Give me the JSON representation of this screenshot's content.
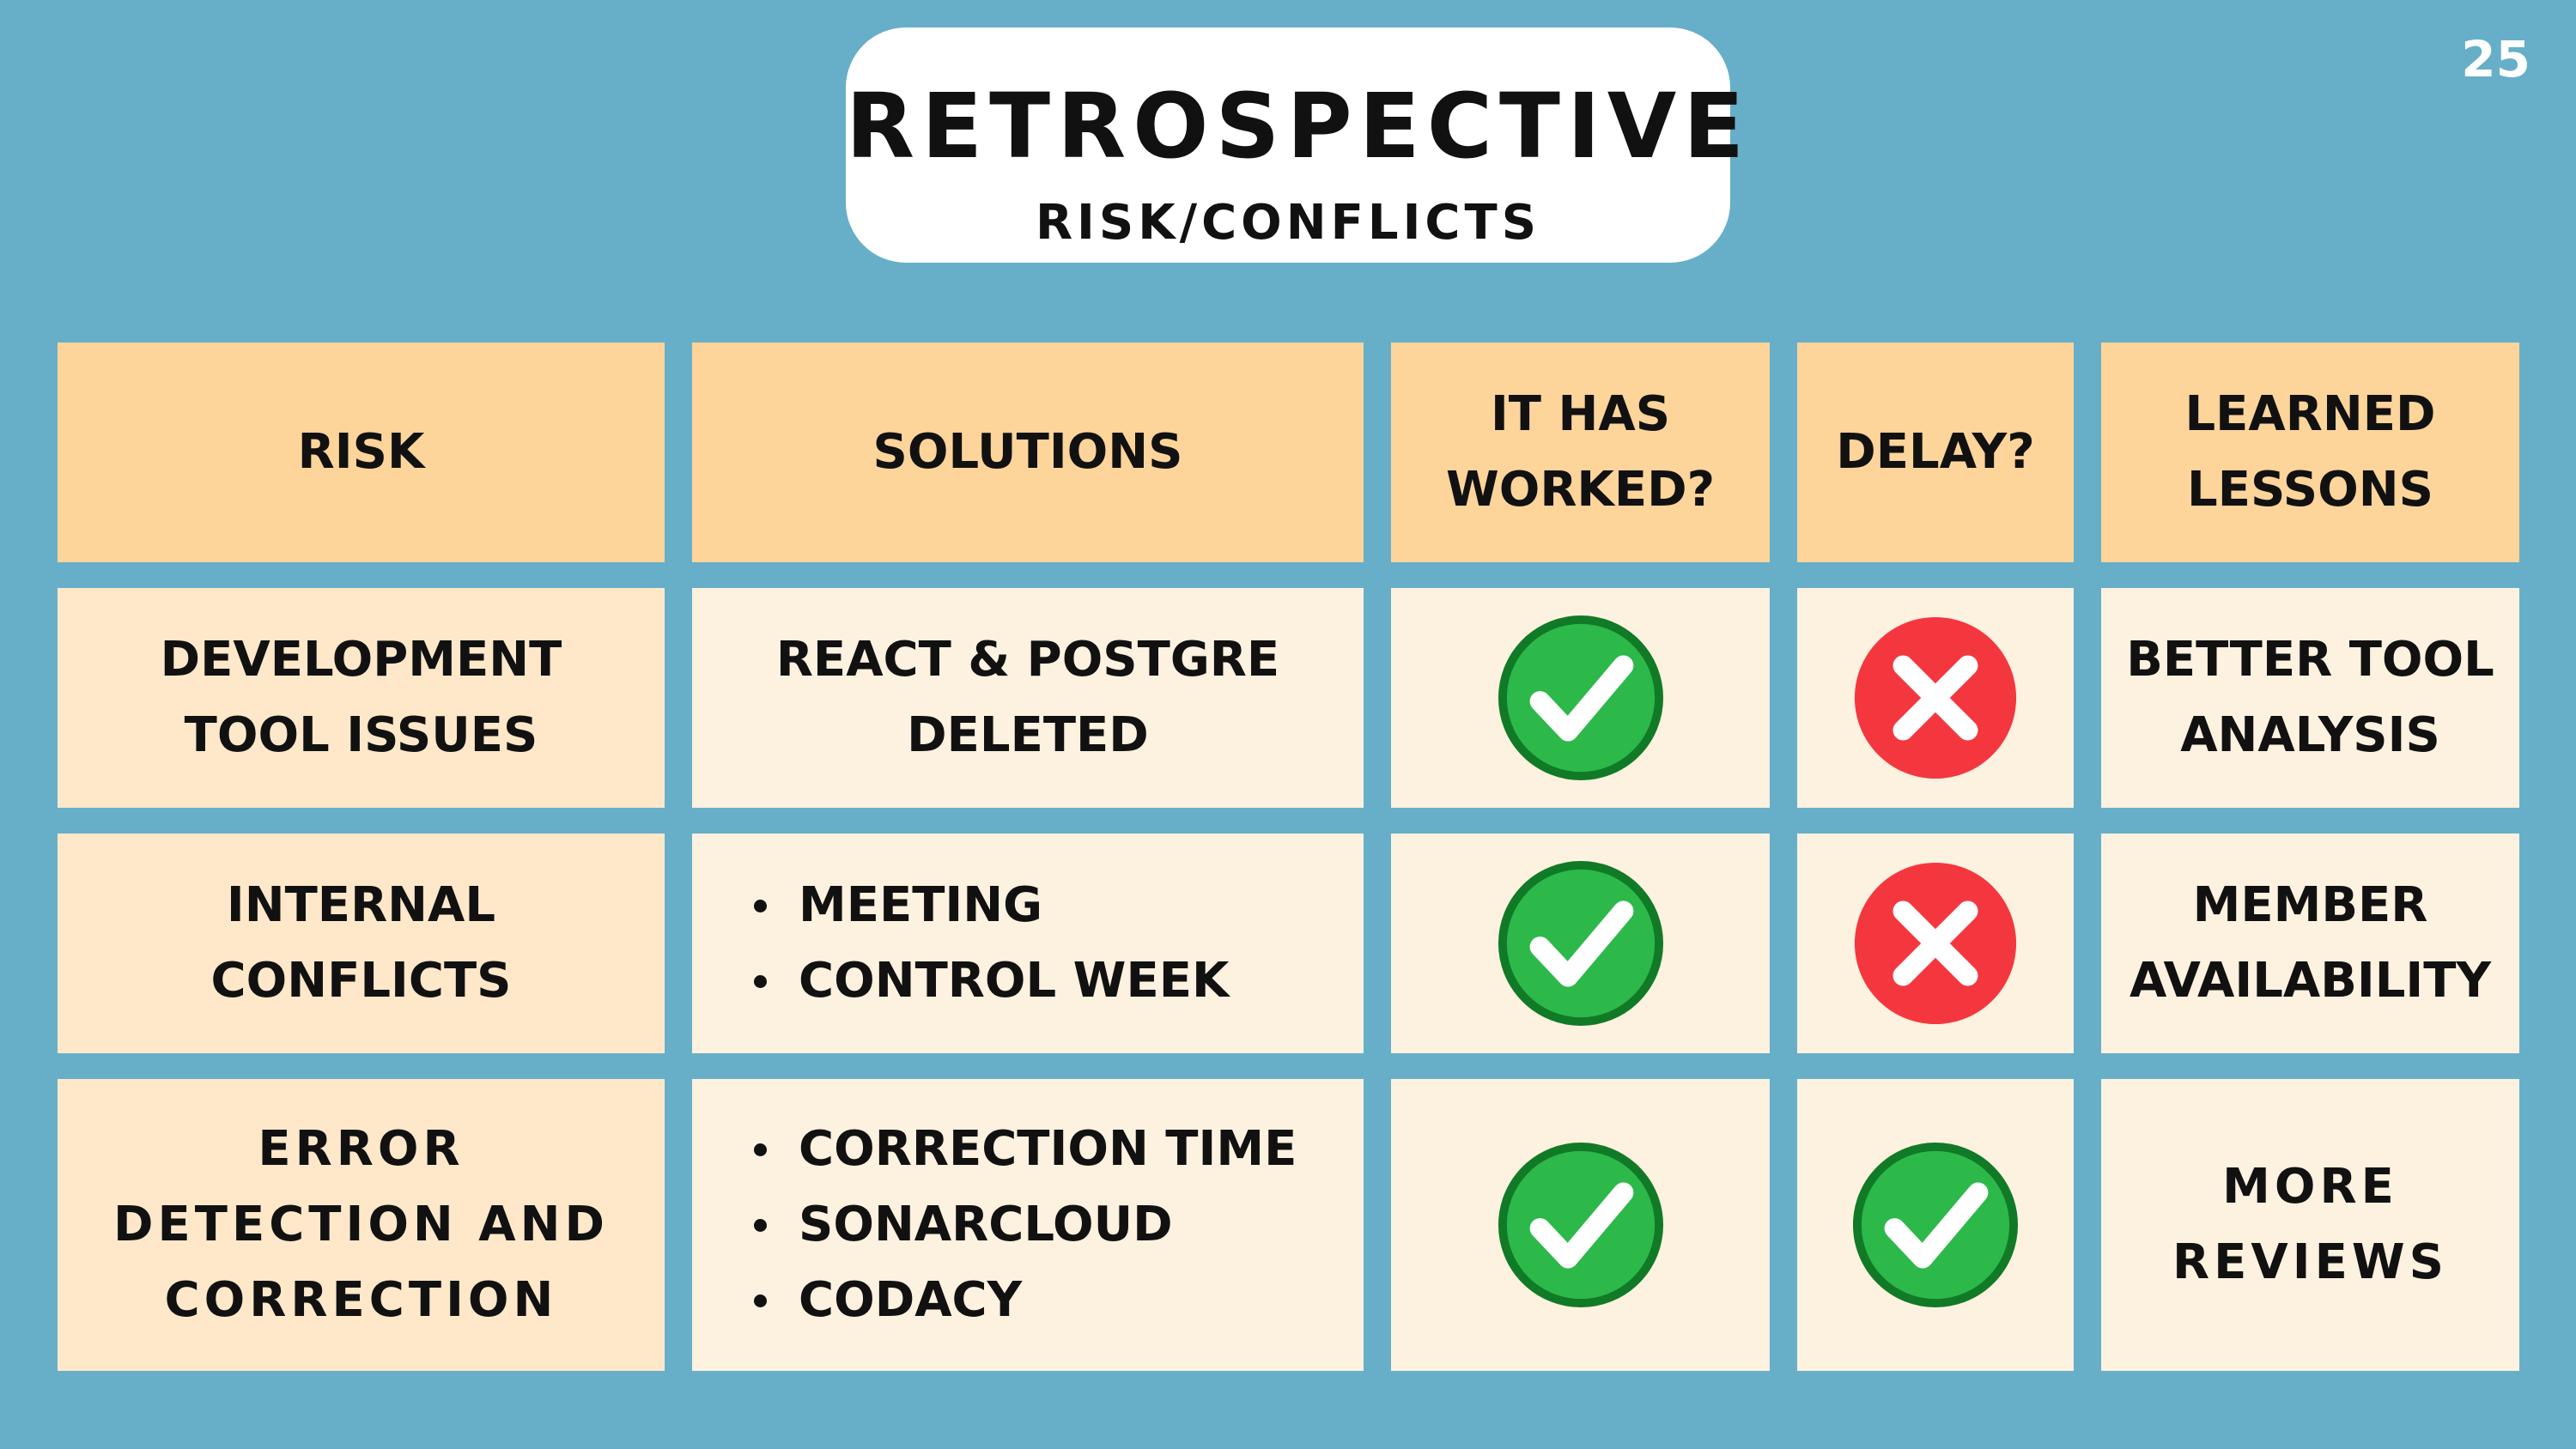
{
  "header": {
    "title": "RETROSPECTIVE",
    "subtitle": "RISK/CONFLICTS"
  },
  "page_number": "25",
  "table": {
    "columns": {
      "risk": "RISK",
      "solutions": "SOLUTIONS",
      "worked": [
        "IT HAS",
        "WORKED?"
      ],
      "delay": "DELAY?",
      "lessons": [
        "LEARNED",
        "LESSONS"
      ]
    },
    "rows": [
      {
        "risk": [
          "DEVELOPMENT",
          "TOOL ISSUES"
        ],
        "solution": [
          "REACT & POSTGRE",
          "DELETED"
        ],
        "worked": true,
        "delay": false,
        "lessons": [
          "BETTER TOOL",
          "ANALYSIS"
        ]
      },
      {
        "risk": [
          "INTERNAL",
          "CONFLICTS"
        ],
        "solutions": [
          "MEETING",
          "CONTROL WEEK"
        ],
        "worked": true,
        "delay": false,
        "lessons": [
          "MEMBER",
          "AVAILABILITY"
        ]
      },
      {
        "risk": [
          "ERROR",
          "DETECTION AND",
          "CORRECTION"
        ],
        "solutions": [
          "CORRECTION TIME",
          "SONARCLOUD",
          "CODACY"
        ],
        "worked": true,
        "delay": true,
        "lessons": [
          "MORE",
          "REVIEWS"
        ]
      }
    ]
  },
  "icons": {
    "yes": "green-check-icon",
    "no": "red-x-icon"
  },
  "colors": {
    "background": "#67AFC8",
    "header_cell": "#FDD49A",
    "body_cell": "#FDF1DF",
    "risk_cell": "#FEE8C9",
    "check_green": "#2DB84A",
    "x_red": "#F4373F"
  }
}
